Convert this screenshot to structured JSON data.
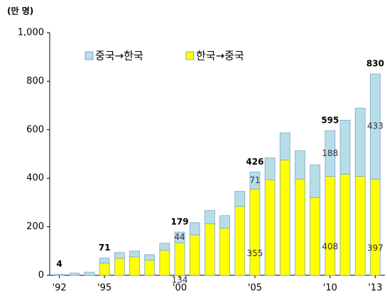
{
  "chart_data": {
    "type": "stacked_bar",
    "y_unit_label": "(만 명)",
    "categories": [
      "'92",
      null,
      null,
      "'95",
      null,
      null,
      null,
      null,
      "'00",
      null,
      null,
      null,
      null,
      "'05",
      null,
      null,
      null,
      null,
      "'10",
      null,
      null,
      "'13"
    ],
    "series": [
      {
        "name": "한국→중국",
        "color": "#ffff00",
        "values": [
          0,
          0,
          0,
          50,
          70,
          76,
          62,
          103,
          134,
          167,
          212,
          194,
          284,
          355,
          393,
          475,
          396,
          320,
          408,
          417,
          408,
          397
        ],
        "value_labels": [
          null,
          null,
          null,
          null,
          null,
          null,
          null,
          null,
          "134",
          null,
          null,
          null,
          null,
          "355",
          null,
          null,
          null,
          null,
          "408",
          null,
          null,
          "397"
        ]
      },
      {
        "name": "중국→한국",
        "color": "#b7dee8",
        "values": [
          4,
          9,
          13,
          21,
          24,
          24,
          23,
          29,
          44,
          50,
          55,
          52,
          62,
          71,
          91,
          112,
          117,
          135,
          188,
          222,
          281,
          433
        ],
        "value_labels": [
          null,
          null,
          null,
          null,
          null,
          null,
          null,
          null,
          "44",
          null,
          null,
          null,
          null,
          "71",
          null,
          null,
          null,
          null,
          "188",
          null,
          null,
          "433"
        ]
      }
    ],
    "totals": [
      4,
      null,
      null,
      71,
      null,
      null,
      null,
      null,
      179,
      null,
      null,
      null,
      null,
      426,
      null,
      null,
      null,
      null,
      595,
      null,
      null,
      830
    ],
    "ylim": [
      0,
      1000
    ],
    "yticks": [
      0,
      200,
      400,
      600,
      800,
      {
        "value": 1000,
        "label": "1,000"
      }
    ],
    "legend_position": "top-left"
  }
}
